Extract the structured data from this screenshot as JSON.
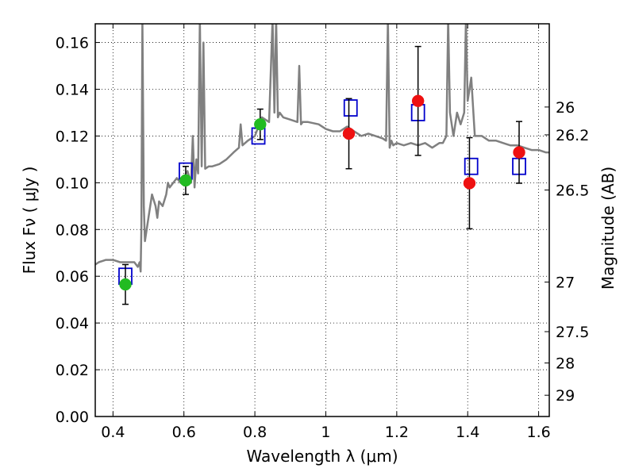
{
  "chart_data": {
    "type": "scatter",
    "xlabel": "Wavelength  λ (μm)",
    "ylabel": "Flux  Fν  ( μJy )",
    "ylabel_right": "Magnitude (AB)",
    "xlim": [
      0.35,
      1.63
    ],
    "ylim": [
      0.0,
      0.168
    ],
    "grid": true,
    "x_ticks": [
      {
        "value": 0.4,
        "label": "0.4"
      },
      {
        "value": 0.6,
        "label": "0.6"
      },
      {
        "value": 0.8,
        "label": "0.8"
      },
      {
        "value": 1.0,
        "label": "1"
      },
      {
        "value": 1.2,
        "label": "1.2"
      },
      {
        "value": 1.4,
        "label": "1.4"
      },
      {
        "value": 1.6,
        "label": "1.6"
      }
    ],
    "y_ticks": [
      {
        "value": 0.0,
        "label": "0.00"
      },
      {
        "value": 0.02,
        "label": "0.02"
      },
      {
        "value": 0.04,
        "label": "0.04"
      },
      {
        "value": 0.06,
        "label": "0.06"
      },
      {
        "value": 0.08,
        "label": "0.08"
      },
      {
        "value": 0.1,
        "label": "0.10"
      },
      {
        "value": 0.12,
        "label": "0.12"
      },
      {
        "value": 0.14,
        "label": "0.14"
      },
      {
        "value": 0.16,
        "label": "0.16"
      }
    ],
    "right_ticks": [
      {
        "flux": 0.1324,
        "label": "26"
      },
      {
        "flux": 0.1205,
        "label": "26.2"
      },
      {
        "flux": 0.0969,
        "label": "26.5"
      },
      {
        "flux": 0.0575,
        "label": "27"
      },
      {
        "flux": 0.0363,
        "label": "27.5"
      },
      {
        "flux": 0.0229,
        "label": "28"
      },
      {
        "flux": 0.0091,
        "label": "29"
      }
    ],
    "series": [
      {
        "kind": "line",
        "color": "#808080",
        "x": [
          0.35,
          0.36,
          0.38,
          0.4,
          0.42,
          0.44,
          0.46,
          0.47,
          0.475,
          0.478,
          0.48,
          0.483,
          0.487,
          0.49,
          0.5,
          0.51,
          0.52,
          0.525,
          0.53,
          0.54,
          0.55,
          0.555,
          0.56,
          0.57,
          0.58,
          0.59,
          0.6,
          0.61,
          0.62,
          0.625,
          0.63,
          0.635,
          0.64,
          0.645,
          0.65,
          0.655,
          0.66,
          0.67,
          0.68,
          0.7,
          0.72,
          0.74,
          0.755,
          0.76,
          0.765,
          0.78,
          0.8,
          0.82,
          0.84,
          0.85,
          0.855,
          0.86,
          0.865,
          0.87,
          0.88,
          0.9,
          0.92,
          0.925,
          0.93,
          0.935,
          0.95,
          0.98,
          1.0,
          1.02,
          1.04,
          1.06,
          1.08,
          1.1,
          1.12,
          1.14,
          1.16,
          1.17,
          1.175,
          1.18,
          1.185,
          1.19,
          1.2,
          1.22,
          1.24,
          1.26,
          1.28,
          1.3,
          1.32,
          1.33,
          1.34,
          1.345,
          1.35,
          1.36,
          1.37,
          1.38,
          1.39,
          1.395,
          1.4,
          1.405,
          1.41,
          1.42,
          1.44,
          1.46,
          1.48,
          1.5,
          1.52,
          1.54,
          1.56,
          1.58,
          1.6,
          1.62,
          1.63
        ],
        "y": [
          0.065,
          0.066,
          0.067,
          0.067,
          0.066,
          0.066,
          0.066,
          0.064,
          0.066,
          0.062,
          0.08,
          0.17,
          0.09,
          0.075,
          0.085,
          0.095,
          0.09,
          0.085,
          0.092,
          0.09,
          0.095,
          0.1,
          0.098,
          0.1,
          0.102,
          0.1,
          0.102,
          0.105,
          0.1,
          0.12,
          0.098,
          0.11,
          0.104,
          0.17,
          0.107,
          0.16,
          0.106,
          0.107,
          0.107,
          0.108,
          0.11,
          0.113,
          0.115,
          0.125,
          0.116,
          0.118,
          0.12,
          0.128,
          0.126,
          0.17,
          0.13,
          0.17,
          0.128,
          0.13,
          0.128,
          0.127,
          0.126,
          0.15,
          0.125,
          0.126,
          0.126,
          0.125,
          0.123,
          0.122,
          0.122,
          0.124,
          0.122,
          0.12,
          0.121,
          0.12,
          0.119,
          0.118,
          0.17,
          0.115,
          0.118,
          0.116,
          0.117,
          0.116,
          0.117,
          0.116,
          0.117,
          0.115,
          0.117,
          0.117,
          0.12,
          0.17,
          0.13,
          0.12,
          0.13,
          0.125,
          0.13,
          0.17,
          0.135,
          0.14,
          0.145,
          0.12,
          0.12,
          0.118,
          0.118,
          0.117,
          0.116,
          0.116,
          0.115,
          0.114,
          0.114,
          0.113,
          0.113
        ]
      },
      {
        "kind": "open-square",
        "color": "#0000cc",
        "x": [
          0.435,
          0.605,
          0.81,
          1.07,
          1.26,
          1.41,
          1.545
        ],
        "y": [
          0.06,
          0.105,
          0.12,
          0.132,
          0.13,
          0.107,
          0.107
        ]
      },
      {
        "kind": "filled-circle",
        "color": "#22bb22",
        "x": [
          0.435,
          0.605,
          0.815
        ],
        "y": [
          0.0565,
          0.101,
          0.125
        ],
        "err": [
          0.0085,
          0.006,
          0.0065
        ]
      },
      {
        "kind": "filled-circle",
        "color": "#ee1111",
        "x": [
          1.065,
          1.26,
          1.405,
          1.545
        ],
        "y": [
          0.121,
          0.135,
          0.0998,
          0.113
        ],
        "err": [
          0.015,
          0.0233,
          0.0195,
          0.0132
        ]
      }
    ]
  }
}
